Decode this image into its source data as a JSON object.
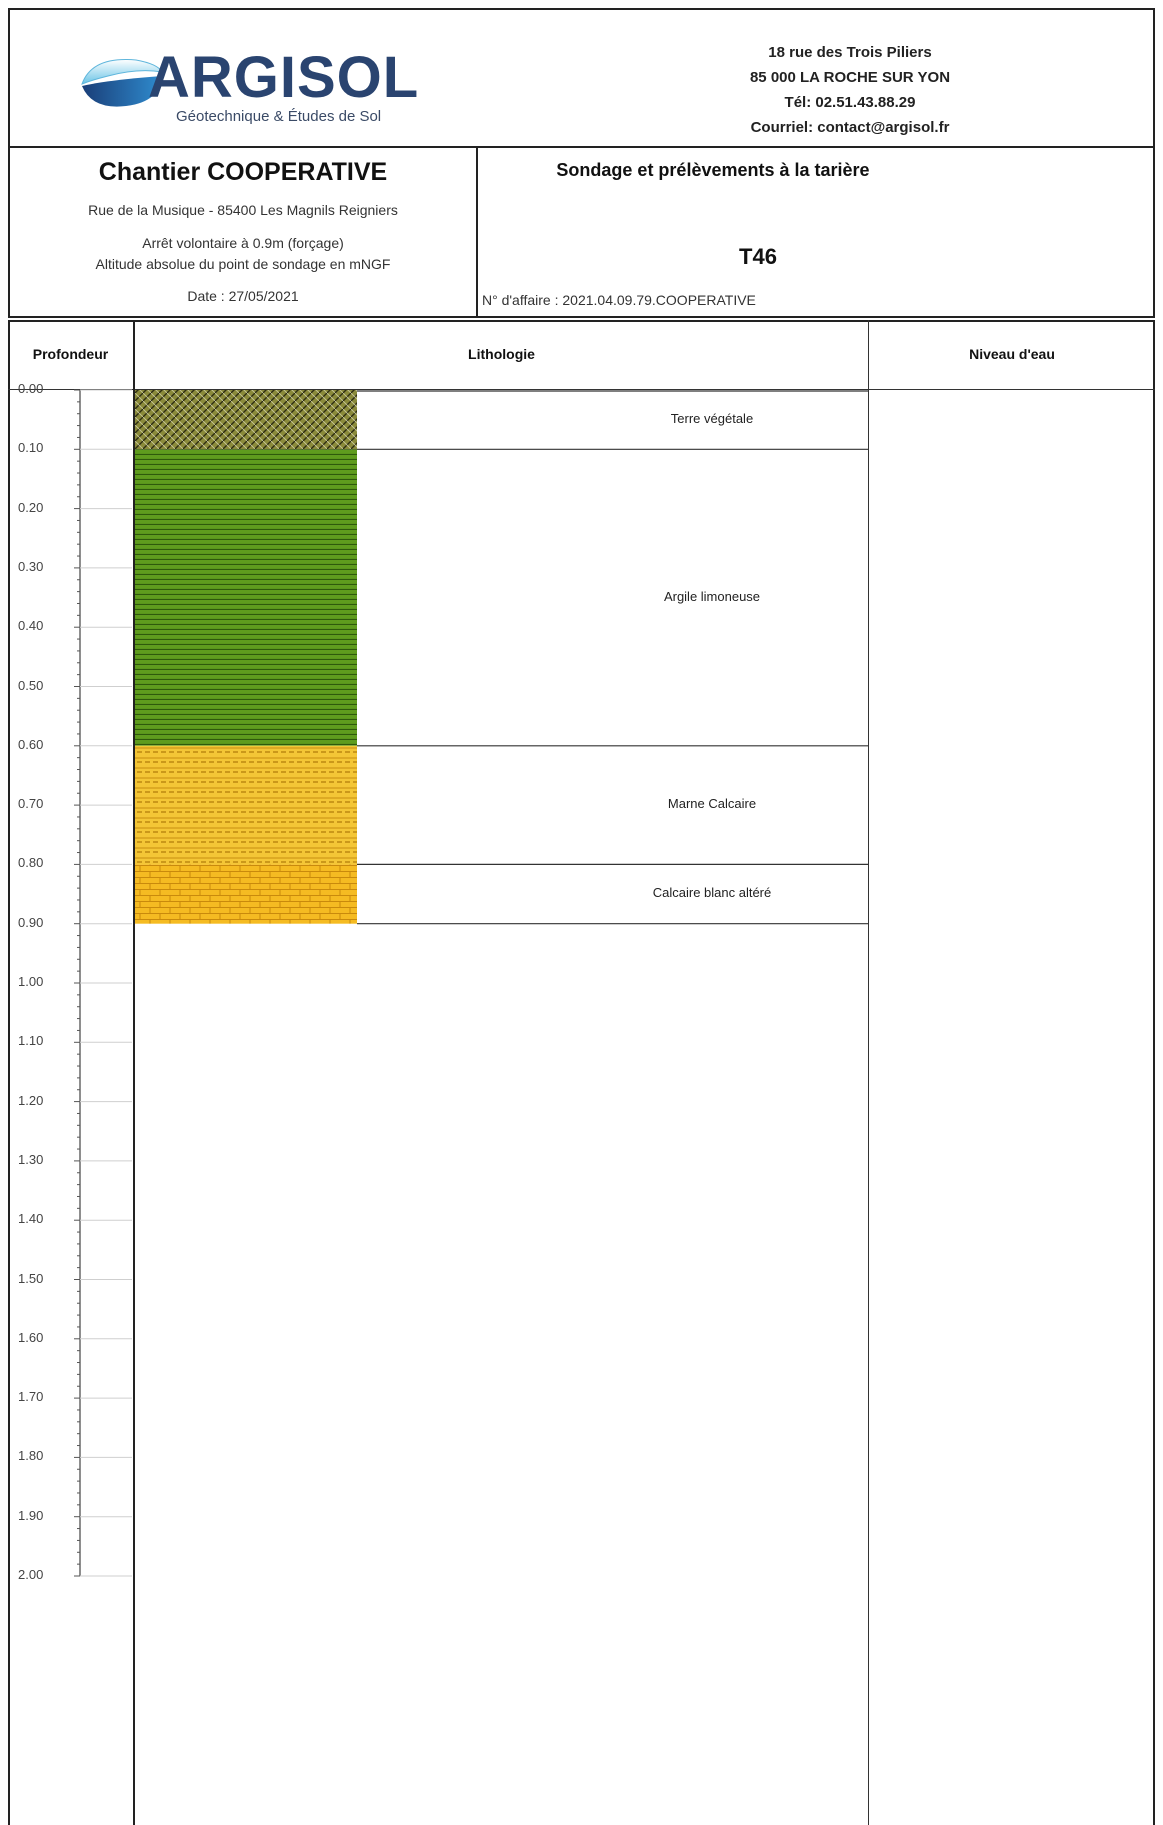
{
  "header": {
    "logo": {
      "brand": "ARGISOL",
      "tagline": "Géotechnique & Études de Sol",
      "colors": {
        "brand": "#2a4470",
        "swoosh_top": "#6ac4e6",
        "swoosh_bottom": "#1f5a96"
      }
    },
    "address_lines": [
      "18 rue des Trois Piliers",
      "85 000 LA ROCHE SUR YON",
      "Tél: 02.51.43.88.29",
      "Courriel: contact@argisol.fr"
    ]
  },
  "project": {
    "title": "Chantier COOPERATIVE",
    "location": "Rue de la Musique - 85400 Les Magnils Reigniers",
    "stop_note": "Arrêt volontaire à 0.9m (forçage)",
    "altitude_note": "Altitude absolue du point de sondage en mNGF",
    "date": "Date :  27/05/2021",
    "method": "Sondage et prélèvements à la tarière",
    "borehole_id": "T46",
    "affair": "N° d'affaire : 2021.04.09.79.COOPERATIVE"
  },
  "log_headers": {
    "depth": "Profondeur",
    "lithology": "Lithologie",
    "water": "Niveau d'eau"
  },
  "scale_labels": [
    "0.00",
    "0.10",
    "0.20",
    "0.30",
    "0.40",
    "0.50",
    "0.60",
    "0.70",
    "0.80",
    "0.90",
    "1.00",
    "1.10",
    "1.20",
    "1.30",
    "1.40",
    "1.50",
    "1.60",
    "1.70",
    "1.80",
    "1.90",
    "2.00"
  ],
  "layers": [
    {
      "top": 0.0,
      "bottom": 0.1,
      "description": "Terre végétale",
      "pattern": "topsoil",
      "color": "#6b6b2a"
    },
    {
      "top": 0.1,
      "bottom": 0.6,
      "description": "Argile limoneuse",
      "pattern": "clay",
      "color": "#5c9a1c"
    },
    {
      "top": 0.6,
      "bottom": 0.8,
      "description": "Marne Calcaire",
      "pattern": "marl",
      "color": "#f2c230"
    },
    {
      "top": 0.8,
      "bottom": 0.9,
      "description": "Calcaire blanc altéré",
      "pattern": "limestone",
      "color": "#f2b820"
    }
  ]
}
